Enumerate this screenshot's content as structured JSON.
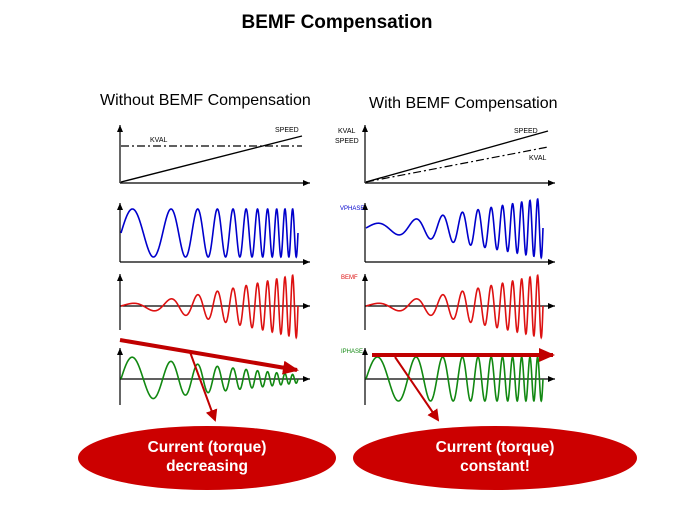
{
  "title": "BEMF Compensation",
  "left": {
    "heading": "Without BEMF Compensation",
    "labels": {
      "speed": "SPEED",
      "kval": "KVAL"
    },
    "callout": {
      "line1": "Current (torque)",
      "line2": "decreasing"
    }
  },
  "right": {
    "heading": "With BEMF Compensation",
    "labels": {
      "kval_top": "KVAL",
      "speed_top": "SPEED",
      "speed": "SPEED",
      "kval": "KVAL",
      "vphase": "VPHASE",
      "bemf": "BEMF",
      "iphase": "IPHASE"
    },
    "callout": {
      "line1": "Current (torque)",
      "line2": "constant!"
    }
  },
  "colors": {
    "vphase": "#0000cc",
    "bemf": "#dd1111",
    "iphase": "#118811",
    "arrow": "#c00000",
    "callout": "#cc0000"
  }
}
